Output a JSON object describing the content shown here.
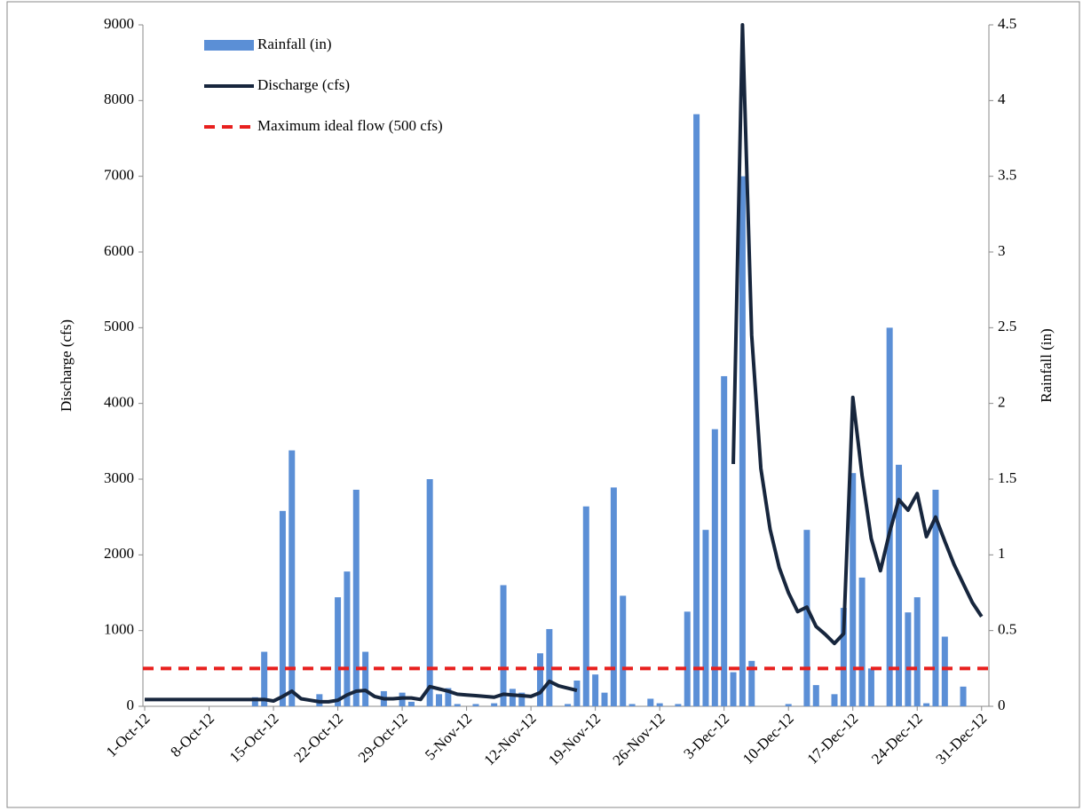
{
  "chart_data": {
    "type": "bar-line",
    "x_categories": [
      "1-Oct-12",
      null,
      null,
      null,
      null,
      null,
      null,
      "8-Oct-12",
      null,
      null,
      null,
      null,
      null,
      null,
      "15-Oct-12",
      null,
      null,
      null,
      null,
      null,
      null,
      "22-Oct-12",
      null,
      null,
      null,
      null,
      null,
      null,
      "29-Oct-12",
      null,
      null,
      null,
      null,
      null,
      null,
      "5-Nov-12",
      null,
      null,
      null,
      null,
      null,
      null,
      "12-Nov-12",
      null,
      null,
      null,
      null,
      null,
      null,
      "19-Nov-12",
      null,
      null,
      null,
      null,
      null,
      null,
      "26-Nov-12",
      null,
      null,
      null,
      null,
      null,
      null,
      "3-Dec-12",
      null,
      null,
      null,
      null,
      null,
      null,
      "10-Dec-12",
      null,
      null,
      null,
      null,
      null,
      null,
      "17-Dec-12",
      null,
      null,
      null,
      null,
      null,
      null,
      "24-Dec-12",
      null,
      null,
      null,
      null,
      null,
      null,
      "31-Dec-12"
    ],
    "y_label": "Discharge (cfs)",
    "y2_label": "Rainfall (in)",
    "ylim": [
      0,
      9000
    ],
    "yticks": [
      0,
      1000,
      2000,
      3000,
      4000,
      5000,
      6000,
      7000,
      8000,
      9000
    ],
    "y2lim": [
      0,
      4.5
    ],
    "y2ticks": [
      0,
      0.5,
      1,
      1.5,
      2,
      2.5,
      3,
      3.5,
      4,
      4.5
    ],
    "series": [
      {
        "name": "Rainfall (in)",
        "kind": "bar",
        "axis": "y2",
        "color": "#5b8fd6",
        "values": [
          0,
          0,
          0,
          0,
          0,
          0,
          0,
          0,
          0,
          0,
          0,
          0,
          0.06,
          0.36,
          0,
          1.29,
          1.69,
          0,
          0,
          0.08,
          0,
          0.72,
          0.89,
          1.43,
          0.36,
          0,
          0.1,
          0,
          0.09,
          0.03,
          0,
          1.5,
          0.08,
          0.12,
          0.015,
          0,
          0.015,
          0,
          0.02,
          0.8,
          0.115,
          0.09,
          0,
          0.35,
          0.51,
          0,
          0.015,
          0.17,
          1.32,
          0.21,
          0.09,
          1.445,
          0.73,
          0.015,
          0,
          0.05,
          0.02,
          0,
          0.015,
          0.625,
          3.91,
          1.165,
          1.83,
          2.18,
          0.225,
          3.5,
          0.3,
          0,
          0,
          0,
          0.015,
          0,
          1.165,
          0.14,
          0,
          0.08,
          0.65,
          1.54,
          0.85,
          0.25,
          0,
          2.5,
          1.595,
          0.62,
          0.72,
          0.02,
          1.43,
          0.46,
          0,
          0.13,
          0,
          0
        ]
      },
      {
        "name": "Discharge (cfs)",
        "kind": "line",
        "color": "#17263d",
        "values": [
          90,
          90,
          90,
          90,
          90,
          90,
          90,
          90,
          90,
          90,
          90,
          90,
          90,
          90,
          70,
          130,
          200,
          100,
          80,
          60,
          60,
          80,
          150,
          200,
          210,
          130,
          100,
          100,
          110,
          110,
          90,
          260,
          230,
          200,
          160,
          150,
          140,
          130,
          120,
          160,
          150,
          140,
          130,
          180,
          330,
          270,
          240,
          210,
          null,
          null,
          null,
          null,
          null,
          null,
          null,
          null,
          null,
          null,
          null,
          null,
          null,
          null,
          null,
          null,
          3200,
          9000,
          4900,
          3140,
          2340,
          1830,
          1500,
          1250,
          1310,
          1055,
          950,
          830,
          960,
          4080,
          3050,
          2215,
          1790,
          2300,
          2730,
          2590,
          2810,
          2240,
          2500,
          2180,
          1875,
          1620,
          1370,
          1185
        ]
      }
    ],
    "reference_line": {
      "name": "Maximum ideal flow (500 cfs)",
      "value": 500,
      "color": "#e8201e"
    }
  }
}
